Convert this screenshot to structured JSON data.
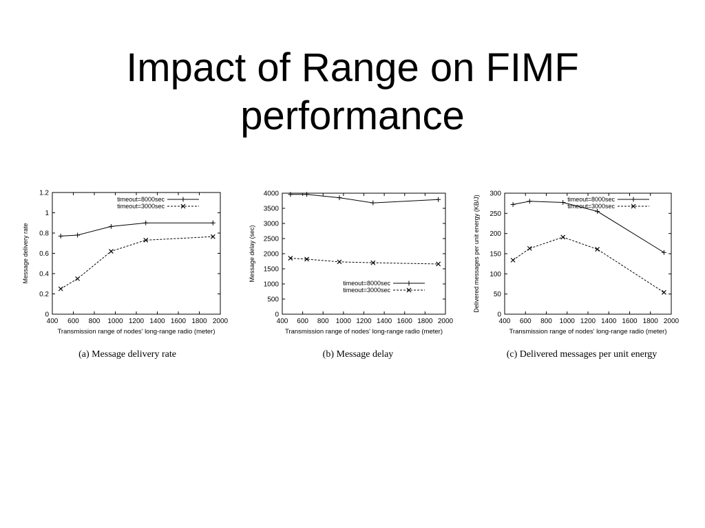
{
  "slide": {
    "title_line1": "Impact of Range on FIMF",
    "title_line2": "performance"
  },
  "chart_data": [
    {
      "type": "line",
      "caption": "(a) Message delivery rate",
      "title": "",
      "xlabel": "Transmission range of nodes' long-range radio (meter)",
      "ylabel": "Message delivery rate",
      "xlim": [
        400,
        2000
      ],
      "ylim": [
        0,
        1.2
      ],
      "xticks": [
        "400",
        "600",
        "800",
        "1000",
        "1200",
        "1400",
        "1600",
        "1800",
        "2000"
      ],
      "yticks": [
        "0",
        "0.2",
        "0.4",
        "0.6",
        "0.8",
        "1",
        "1.2"
      ],
      "legend_position": "top-right",
      "grid": false,
      "series": [
        {
          "name": "timeout=8000sec",
          "marker": "plus",
          "dash": "solid",
          "x": [
            480,
            640,
            960,
            1290,
            1930
          ],
          "y": [
            0.77,
            0.78,
            0.865,
            0.9,
            0.9
          ]
        },
        {
          "name": "timeout=3000sec",
          "marker": "cross",
          "dash": "dashed",
          "x": [
            480,
            640,
            960,
            1290,
            1930
          ],
          "y": [
            0.25,
            0.35,
            0.62,
            0.73,
            0.765
          ]
        }
      ]
    },
    {
      "type": "line",
      "caption": "(b) Message delay",
      "title": "",
      "xlabel": "Transmission range of nodes' long-range radio (meter)",
      "ylabel": "Message delay (sec)",
      "xlim": [
        400,
        2000
      ],
      "ylim": [
        0,
        4000
      ],
      "xticks": [
        "400",
        "600",
        "800",
        "1000",
        "1200",
        "1400",
        "1600",
        "1800",
        "2000"
      ],
      "yticks": [
        "0",
        "500",
        "1000",
        "1500",
        "2000",
        "2500",
        "3000",
        "3500",
        "4000"
      ],
      "legend_position": "bottom-right",
      "grid": false,
      "series": [
        {
          "name": "timeout=8000sec",
          "marker": "plus",
          "dash": "solid",
          "x": [
            480,
            640,
            960,
            1290,
            1930
          ],
          "y": [
            3960,
            3960,
            3850,
            3680,
            3790
          ]
        },
        {
          "name": "timeout=3000sec",
          "marker": "cross",
          "dash": "dashed",
          "x": [
            480,
            640,
            960,
            1290,
            1930
          ],
          "y": [
            1850,
            1820,
            1730,
            1700,
            1660
          ]
        }
      ]
    },
    {
      "type": "line",
      "caption": "(c) Delivered messages per unit energy",
      "title": "",
      "xlabel": "Transmission range of nodes' long-range radio (meter)",
      "ylabel": "Delivered messages per unit energy (KB/J)",
      "xlim": [
        400,
        2000
      ],
      "ylim": [
        0,
        300
      ],
      "xticks": [
        "400",
        "600",
        "800",
        "1000",
        "1200",
        "1400",
        "1600",
        "1800",
        "2000"
      ],
      "yticks": [
        "0",
        "50",
        "100",
        "150",
        "200",
        "250",
        "300"
      ],
      "legend_position": "top-right",
      "grid": false,
      "series": [
        {
          "name": "timeout=8000sec",
          "marker": "plus",
          "dash": "solid",
          "x": [
            480,
            640,
            960,
            1290,
            1930
          ],
          "y": [
            272,
            280,
            277,
            255,
            153
          ]
        },
        {
          "name": "timeout=3000sec",
          "marker": "cross",
          "dash": "dashed",
          "x": [
            480,
            640,
            960,
            1290,
            1930
          ],
          "y": [
            134,
            163,
            191,
            161,
            54
          ]
        }
      ]
    }
  ]
}
